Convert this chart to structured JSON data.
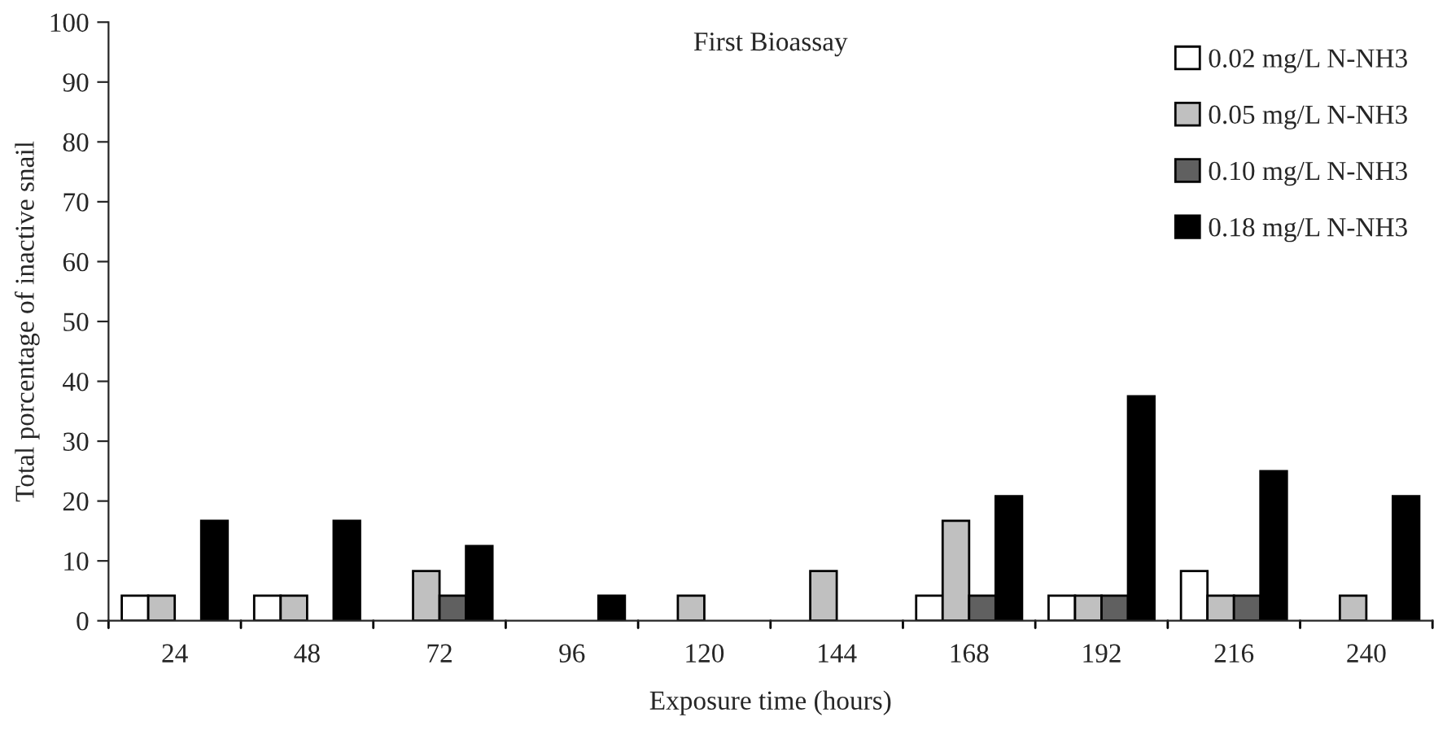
{
  "chart_data": {
    "type": "bar",
    "title": "First Bioassay",
    "xlabel": "Exposure time (hours)",
    "ylabel": "Total porcentage of inactive snail",
    "categories": [
      "24",
      "48",
      "72",
      "96",
      "120",
      "144",
      "168",
      "192",
      "216",
      "240"
    ],
    "series": [
      {
        "name": "0.02 mg/L N-NH3",
        "color": "#ffffff",
        "values": [
          4.2,
          4.2,
          null,
          null,
          null,
          null,
          4.2,
          4.2,
          8.3,
          null
        ]
      },
      {
        "name": "0.05 mg/L N-NH3",
        "color": "#c0c0c0",
        "values": [
          4.2,
          4.2,
          8.3,
          null,
          4.2,
          8.3,
          16.7,
          4.2,
          4.2,
          4.2
        ]
      },
      {
        "name": "0.10 mg/L N-NH3",
        "color": "#606060",
        "values": [
          null,
          null,
          4.2,
          null,
          null,
          null,
          4.2,
          4.2,
          4.2,
          null
        ]
      },
      {
        "name": "0.18 mg/L N-NH3",
        "color": "#000000",
        "values": [
          16.7,
          16.7,
          12.5,
          4.2,
          null,
          null,
          20.8,
          37.5,
          25,
          20.8
        ]
      }
    ],
    "ylim": [
      0,
      100
    ],
    "yticks": [
      0,
      10,
      20,
      30,
      40,
      50,
      60,
      70,
      80,
      90,
      100
    ],
    "grid": false,
    "legend": "top right"
  }
}
